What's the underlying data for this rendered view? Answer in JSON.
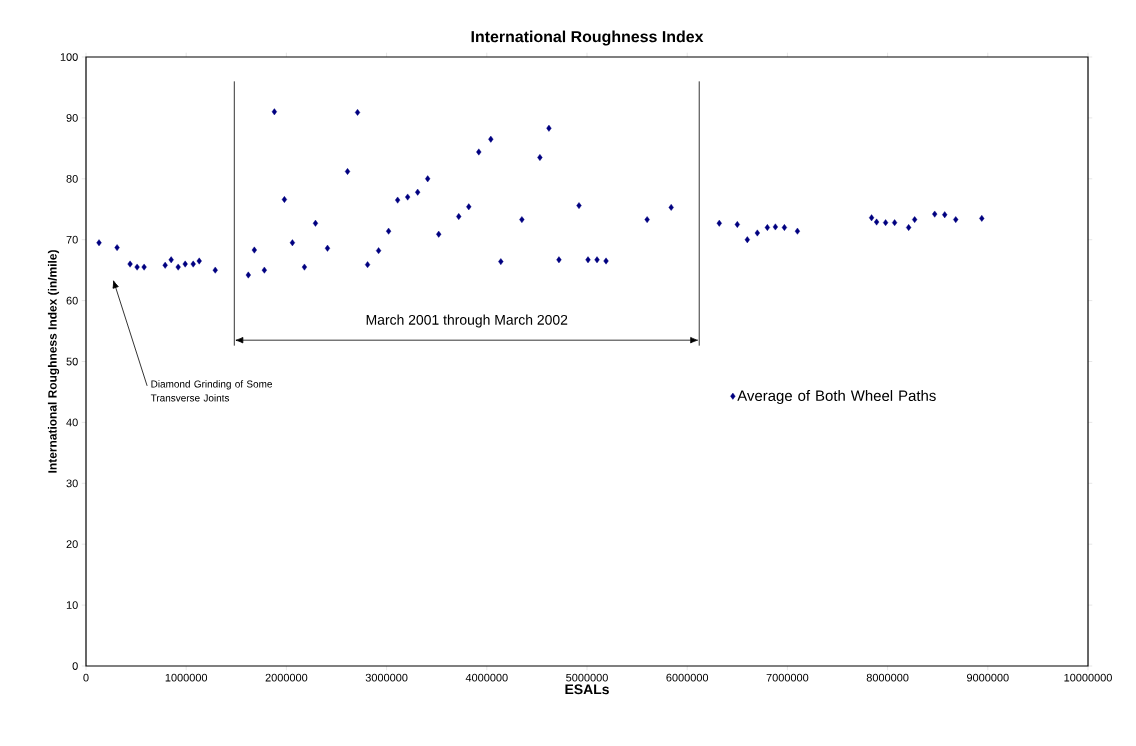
{
  "chart_data": {
    "type": "scatter",
    "title": "International Roughness Index",
    "xlabel": "ESALs",
    "ylabel": "International Roughness Index (in/mile)",
    "series": [
      {
        "name": "Average of Both Wheel Paths",
        "color": "#000080",
        "x": [
          130000,
          310000,
          440000,
          510000,
          580000,
          790000,
          850000,
          920000,
          990000,
          1070000,
          1130000,
          1290000,
          1620000,
          1680000,
          1780000,
          1880000,
          1980000,
          2060000,
          2180000,
          2290000,
          2410000,
          2610000,
          2710000,
          2810000,
          2920000,
          3020000,
          3110000,
          3210000,
          3310000,
          3410000,
          3520000,
          3720000,
          3820000,
          3920000,
          4040000,
          4140000,
          4350000,
          4530000,
          4620000,
          4720000,
          4920000,
          5010000,
          5100000,
          5190000,
          5600000,
          5840000,
          6320000,
          6500000,
          6600000,
          6700000,
          6800000,
          6880000,
          6970000,
          7100000,
          7840000,
          7890000,
          7980000,
          8070000,
          8210000,
          8270000,
          8470000,
          8570000,
          8680000,
          8940000
        ],
        "values": [
          69.5,
          68.7,
          66,
          65.5,
          65.5,
          65.8,
          66.7,
          65.5,
          66,
          66,
          66.5,
          65,
          64.2,
          68.3,
          65,
          91,
          76.6,
          69.5,
          65.5,
          72.7,
          68.6,
          81.2,
          90.9,
          65.9,
          68.2,
          71.4,
          76.5,
          77,
          77.8,
          80,
          70.9,
          73.8,
          75.4,
          84.4,
          86.5,
          66.4,
          73.3,
          83.5,
          88.3,
          66.7,
          75.6,
          66.7,
          66.7,
          66.5,
          73.3,
          75.3,
          72.7,
          72.5,
          70,
          71.1,
          72,
          72.1,
          72,
          71.4,
          73.6,
          72.9,
          72.8,
          72.8,
          72,
          73.3,
          74.2,
          74.1,
          73.3,
          73.5
        ]
      }
    ],
    "xlim": [
      0,
      10000000
    ],
    "xticks": [
      0,
      1000000,
      2000000,
      3000000,
      4000000,
      5000000,
      6000000,
      7000000,
      8000000,
      9000000,
      10000000
    ],
    "ylim": [
      0,
      100
    ],
    "yticks": [
      0,
      10,
      20,
      30,
      40,
      50,
      60,
      70,
      80,
      90,
      100
    ],
    "marker": "diamond",
    "grid": false,
    "legend": "right",
    "ref_lines": [
      {
        "axis": "x",
        "value": 1480000
      },
      {
        "axis": "x",
        "value": 6120000
      }
    ],
    "annotations": [
      "Diamond Grinding of Some Transverse Joints",
      "March 2001 through March 2002"
    ]
  }
}
